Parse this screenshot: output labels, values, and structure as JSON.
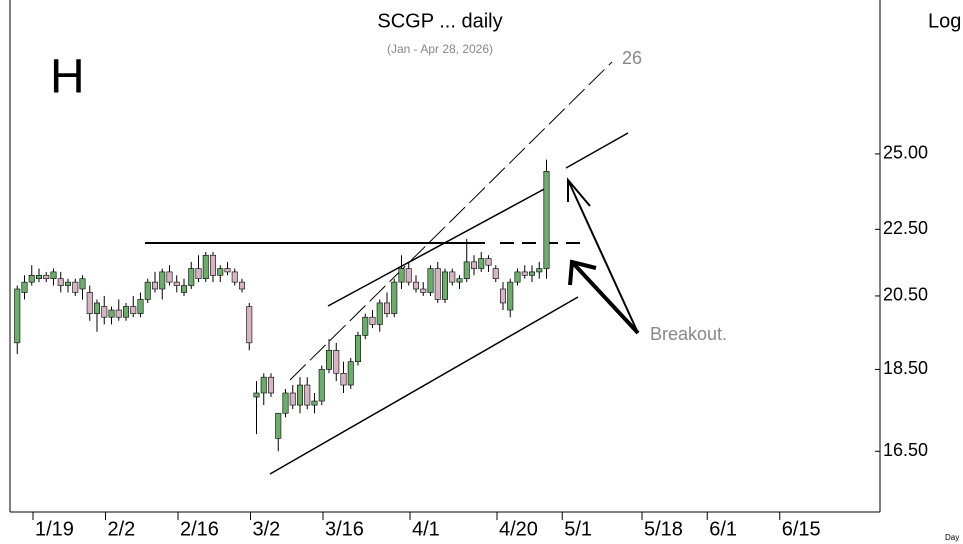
{
  "chart_data": {
    "type": "candlestick",
    "title": "SCGP ... daily",
    "subtitle": "(Jan - Apr 28, 2026)",
    "panel_label": "H",
    "scale_label": "Log",
    "x_axis_label": "Day",
    "annotations": [
      "26",
      "Breakout."
    ],
    "log_scale": true,
    "up_color": "#6aae6a",
    "down_color": "#d6b4c4",
    "x": [
      0,
      1,
      2,
      3,
      4,
      5,
      6,
      7,
      8,
      9,
      10,
      11,
      12,
      13,
      14,
      15,
      16,
      17,
      18,
      19,
      20,
      21,
      22,
      23,
      24,
      25,
      26,
      27,
      28,
      29,
      30,
      31,
      32,
      33,
      34,
      35,
      36,
      37,
      38,
      39,
      40,
      41,
      42,
      43,
      44,
      45,
      46,
      47,
      48,
      49,
      50,
      51,
      52,
      53,
      54,
      55,
      56,
      57,
      58,
      59,
      60,
      61,
      62,
      63,
      64,
      65,
      66,
      67,
      68,
      69,
      70,
      71,
      72,
      73
    ],
    "open": [
      19.2,
      20.6,
      20.9,
      21.0,
      21.1,
      21.0,
      21.0,
      20.8,
      20.9,
      20.7,
      20.6,
      20.0,
      20.2,
      19.9,
      20.1,
      19.9,
      20.2,
      20.0,
      20.4,
      20.9,
      20.7,
      21.2,
      20.9,
      20.6,
      20.8,
      21.3,
      21.0,
      21.7,
      21.1,
      21.3,
      21.2,
      20.9,
      20.2,
      17.8,
      17.9,
      18.3,
      16.8,
      17.4,
      17.9,
      17.6,
      18.1,
      17.6,
      17.7,
      18.5,
      19.0,
      18.4,
      18.1,
      18.7,
      19.4,
      19.9,
      19.7,
      20.3,
      20.0,
      20.9,
      21.3,
      20.9,
      20.7,
      20.6,
      21.3,
      20.4,
      21.2,
      20.9,
      21.0,
      21.5,
      21.3,
      21.6,
      21.3,
      20.7,
      20.1,
      20.9,
      21.2,
      21.1,
      21.2,
      21.3
    ],
    "high": [
      20.8,
      21.1,
      21.4,
      21.3,
      21.2,
      21.3,
      21.2,
      21.0,
      21.0,
      21.1,
      20.8,
      20.4,
      20.5,
      20.2,
      20.4,
      20.3,
      20.5,
      20.6,
      21.0,
      21.2,
      21.3,
      21.4,
      21.1,
      21.0,
      21.5,
      21.7,
      21.8,
      21.8,
      21.4,
      21.5,
      21.3,
      21.0,
      20.3,
      18.2,
      18.4,
      18.4,
      17.4,
      18.0,
      18.1,
      18.3,
      18.3,
      17.9,
      18.6,
      19.3,
      19.2,
      18.7,
      18.8,
      19.5,
      20.0,
      20.1,
      20.4,
      20.6,
      21.0,
      21.7,
      21.5,
      21.1,
      20.9,
      21.4,
      21.5,
      21.3,
      21.3,
      21.1,
      22.2,
      21.7,
      21.8,
      21.7,
      21.4,
      20.9,
      21.0,
      21.3,
      21.4,
      21.4,
      21.5,
      24.8
    ],
    "low": [
      18.9,
      20.4,
      20.8,
      20.9,
      20.9,
      20.8,
      20.6,
      20.6,
      20.5,
      20.4,
      19.8,
      19.5,
      19.7,
      19.7,
      19.8,
      19.8,
      19.9,
      19.9,
      20.3,
      20.6,
      20.4,
      20.8,
      20.6,
      20.5,
      20.7,
      20.9,
      20.9,
      20.9,
      20.9,
      21.1,
      20.8,
      20.6,
      19.0,
      16.9,
      17.6,
      17.8,
      16.5,
      17.3,
      17.5,
      17.4,
      17.5,
      17.4,
      17.6,
      18.4,
      18.2,
      17.9,
      18.0,
      18.6,
      19.3,
      19.6,
      19.5,
      19.9,
      19.9,
      20.7,
      20.8,
      20.6,
      20.5,
      20.5,
      20.3,
      20.3,
      20.8,
      20.7,
      20.9,
      21.1,
      21.2,
      21.2,
      20.9,
      20.1,
      19.9,
      20.8,
      21.0,
      20.9,
      21.0,
      21.0
    ],
    "close": [
      20.7,
      20.9,
      21.1,
      21.1,
      21.0,
      21.2,
      20.8,
      20.9,
      20.6,
      21.0,
      20.0,
      20.3,
      19.9,
      20.1,
      19.9,
      20.2,
      20.0,
      20.4,
      20.9,
      20.7,
      21.2,
      20.9,
      20.8,
      20.8,
      21.3,
      21.0,
      21.7,
      21.1,
      21.3,
      21.2,
      20.9,
      20.7,
      19.2,
      17.9,
      18.3,
      17.9,
      17.4,
      17.9,
      17.6,
      18.1,
      17.6,
      17.7,
      18.5,
      19.0,
      18.4,
      18.1,
      18.7,
      19.4,
      19.9,
      19.7,
      20.3,
      20.0,
      20.9,
      21.3,
      20.9,
      20.7,
      20.6,
      21.3,
      20.4,
      21.2,
      20.9,
      21.0,
      21.5,
      21.3,
      21.6,
      21.4,
      21.0,
      20.3,
      20.9,
      21.2,
      21.1,
      21.2,
      21.3,
      24.4
    ],
    "xlim": [
      -1,
      119
    ],
    "xticks": [
      {
        "value": 3,
        "label": "1/19"
      },
      {
        "value": 13,
        "label": "2/2"
      },
      {
        "value": 23,
        "label": "2/16"
      },
      {
        "value": 33,
        "label": "3/2"
      },
      {
        "value": 43,
        "label": "3/16"
      },
      {
        "value": 55,
        "label": "4/1"
      },
      {
        "value": 67,
        "label": "4/20"
      },
      {
        "value": 76,
        "label": "5/1"
      },
      {
        "value": 87,
        "label": "5/18"
      },
      {
        "value": 96,
        "label": "6/1"
      },
      {
        "value": 106,
        "label": "6/15"
      }
    ],
    "ylim": [
      15.2,
      31
    ],
    "yticks": [
      {
        "value": 16.5,
        "label": "16.50"
      },
      {
        "value": 18.5,
        "label": "18.50"
      },
      {
        "value": 20.5,
        "label": "20.50"
      },
      {
        "value": 22.5,
        "label": "22.50"
      },
      {
        "value": 25,
        "label": "25.00"
      }
    ]
  }
}
